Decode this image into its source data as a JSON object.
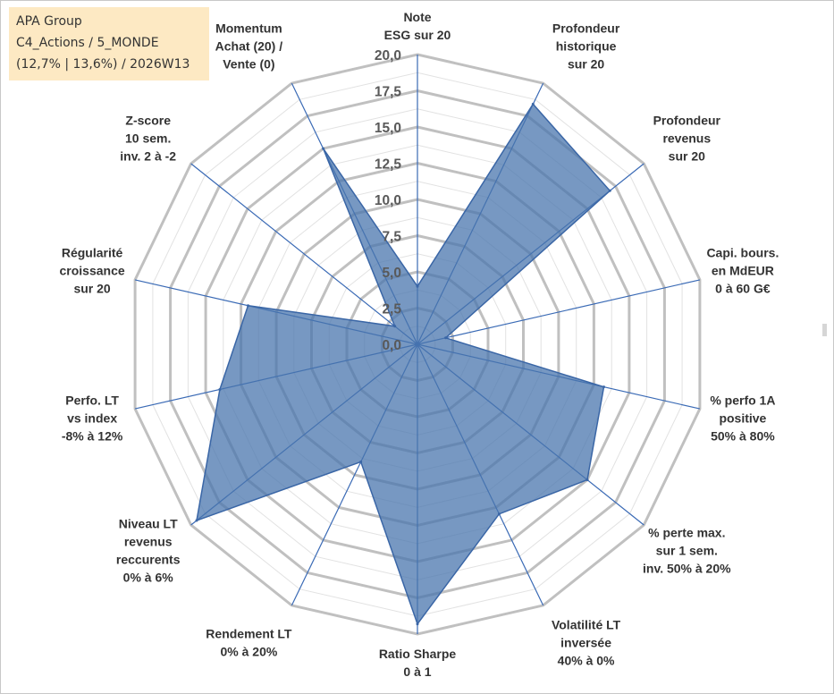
{
  "info_box": {
    "line1": "APA Group",
    "line2": "C4_Actions / 5_MONDE",
    "line3": "(12,7% | 13,6%) / 2026W13"
  },
  "colors": {
    "series_fill": "#4a76ae",
    "series_stroke": "#3a66a6",
    "spokes": "#3a6ab5",
    "major_grid": "#c0c0c0",
    "minor_grid": "#e2e2e2",
    "info_box_background": "#fde9c3"
  },
  "chart_data": {
    "type": "radar",
    "rlim": [
      0,
      20
    ],
    "major_ticks": [
      0,
      2.5,
      5,
      7.5,
      10,
      12.5,
      15,
      17.5,
      20
    ],
    "tick_labels": [
      "0,0",
      "2,5",
      "5,0",
      "7,5",
      "10,0",
      "12,5",
      "15,0",
      "17,5",
      "20,0"
    ],
    "minor_step": 1.25,
    "grid": true,
    "categories": [
      [
        "Note",
        "ESG sur 20"
      ],
      [
        "Profondeur",
        "historique",
        "sur 20"
      ],
      [
        "Profondeur",
        "revenus",
        "sur 20"
      ],
      [
        "Capi. bours.",
        "en MdEUR",
        "0 à 60 G€"
      ],
      [
        "% perfo 1A",
        "positive",
        "50% à 80%"
      ],
      [
        "% perte max.",
        "sur 1 sem.",
        "inv. 50% à 20%"
      ],
      [
        "Volatilité LT",
        "inversée",
        "40% à 0%"
      ],
      [
        "Ratio Sharpe",
        "0 à 1"
      ],
      [
        "Rendement LT",
        "0% à 20%"
      ],
      [
        "Niveau LT",
        "revenus",
        "reccurents",
        "0% à 6%"
      ],
      [
        "Perfo. LT",
        "vs index",
        "-8% à 12%"
      ],
      [
        "Régularité",
        "croissance",
        "sur 20"
      ],
      [
        "Z-score",
        "10 sem.",
        "inv. 2 à -2"
      ],
      [
        "Momentum",
        "Achat (20) /",
        "Vente (0)"
      ]
    ],
    "series": [
      {
        "values": [
          4.0,
          18.4,
          17.0,
          2.0,
          13.2,
          15.0,
          13.0,
          19.3,
          9.0,
          19.5,
          14.0,
          12.0,
          2.0,
          15.0
        ]
      }
    ]
  }
}
